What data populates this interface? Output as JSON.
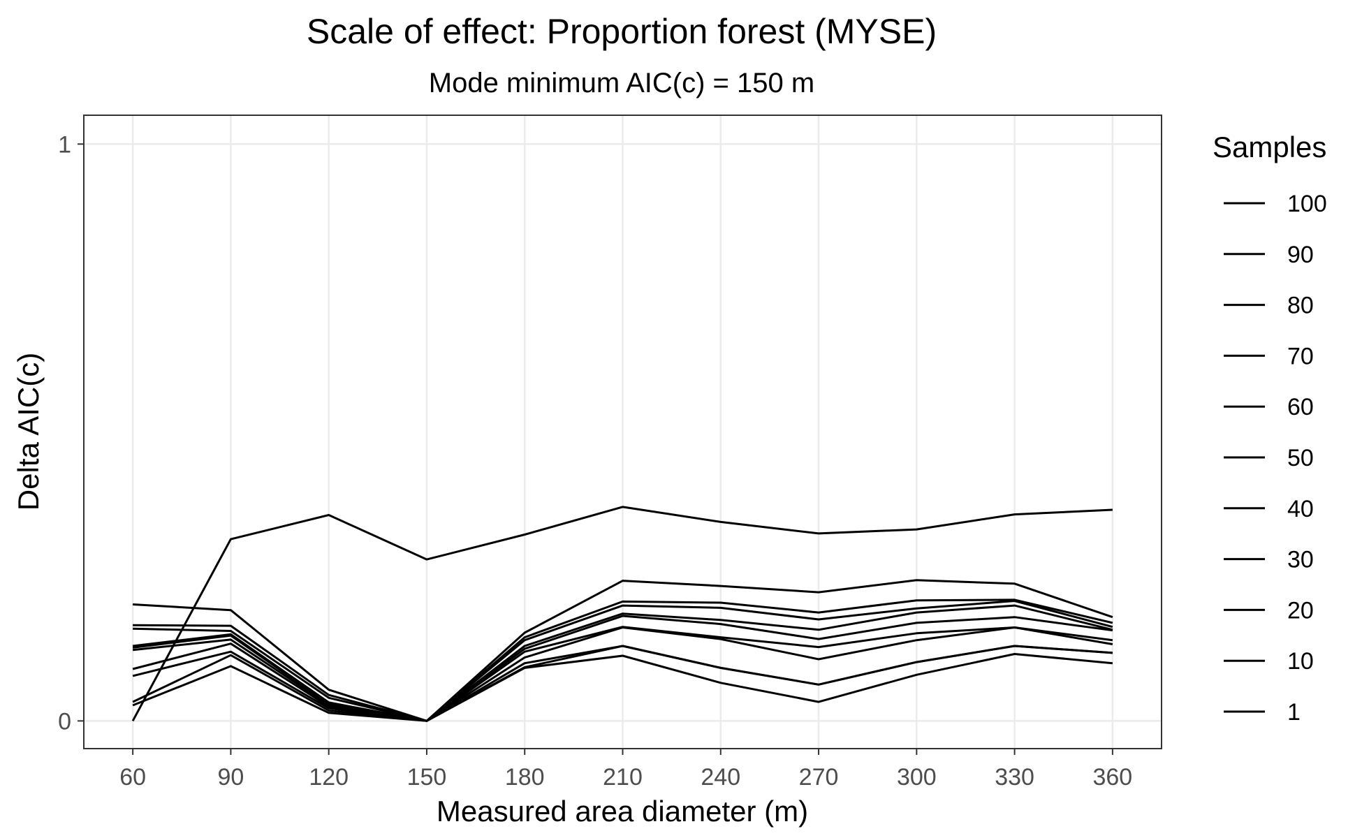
{
  "chart_data": {
    "type": "line",
    "title": "Scale of effect: Proportion forest (MYSE)",
    "subtitle": "Mode minimum AIC(c) = 150 m",
    "xlabel": "Measured area diameter (m)",
    "ylabel": "Delta AIC(c)",
    "x": [
      60,
      90,
      120,
      150,
      180,
      210,
      240,
      270,
      300,
      330,
      360
    ],
    "x_tick_labels": [
      "60",
      "90",
      "120",
      "150",
      "180",
      "210",
      "240",
      "270",
      "300",
      "330",
      "360"
    ],
    "y_ticks": [
      0,
      1
    ],
    "y_tick_labels": [
      "0",
      "1"
    ],
    "xlim": [
      45,
      375
    ],
    "ylim": [
      -0.048,
      1.05
    ],
    "grid": true,
    "legend": {
      "title": "Samples",
      "position": "right",
      "labels": [
        "100",
        "90",
        "80",
        "70",
        "60",
        "50",
        "40",
        "30",
        "20",
        "10",
        "1"
      ]
    },
    "series": [
      {
        "values": [
          0.0,
          0.315,
          0.357,
          0.28,
          0.323,
          0.371,
          0.345,
          0.325,
          0.332,
          0.358,
          0.366
        ]
      },
      {
        "values": [
          0.202,
          0.192,
          0.054,
          0.0,
          0.153,
          0.243,
          0.234,
          0.223,
          0.244,
          0.238,
          0.18
        ]
      },
      {
        "values": [
          0.166,
          0.165,
          0.045,
          0.0,
          0.145,
          0.207,
          0.205,
          0.188,
          0.209,
          0.21,
          0.17
        ]
      },
      {
        "values": [
          0.16,
          0.156,
          0.04,
          0.0,
          0.14,
          0.2,
          0.196,
          0.176,
          0.195,
          0.208,
          0.163
        ]
      },
      {
        "values": [
          0.13,
          0.15,
          0.032,
          0.0,
          0.13,
          0.186,
          0.175,
          0.158,
          0.188,
          0.2,
          0.158
        ]
      },
      {
        "values": [
          0.127,
          0.148,
          0.03,
          0.0,
          0.125,
          0.182,
          0.168,
          0.142,
          0.17,
          0.18,
          0.157
        ]
      },
      {
        "values": [
          0.123,
          0.141,
          0.028,
          0.0,
          0.12,
          0.163,
          0.145,
          0.128,
          0.152,
          0.162,
          0.14
        ]
      },
      {
        "values": [
          0.09,
          0.134,
          0.025,
          0.0,
          0.11,
          0.162,
          0.142,
          0.107,
          0.14,
          0.162,
          0.133
        ]
      },
      {
        "values": [
          0.078,
          0.12,
          0.022,
          0.0,
          0.1,
          0.13,
          0.092,
          0.063,
          0.102,
          0.13,
          0.118
        ]
      },
      {
        "values": [
          0.033,
          0.114,
          0.018,
          0.0,
          0.093,
          0.13,
          0.092,
          0.063,
          0.102,
          0.13,
          0.118
        ]
      },
      {
        "values": [
          0.027,
          0.095,
          0.014,
          0.0,
          0.092,
          0.113,
          0.066,
          0.033,
          0.08,
          0.116,
          0.1
        ]
      }
    ]
  }
}
